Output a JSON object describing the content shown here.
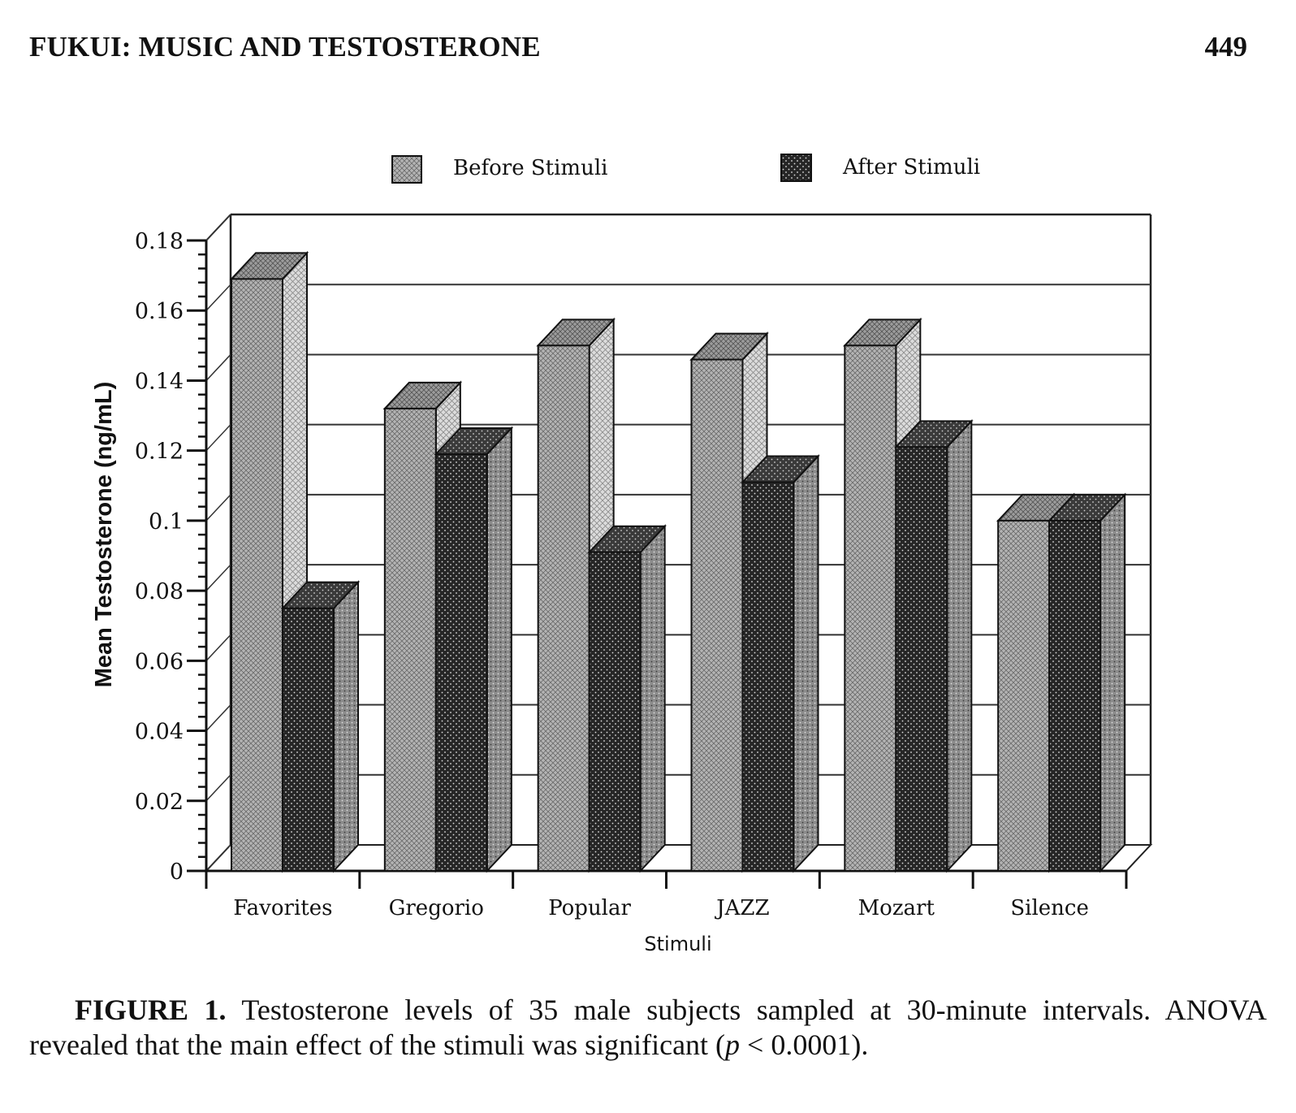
{
  "header": {
    "running_head": "FUKUI: MUSIC AND TESTOSTERONE",
    "page_number": "449"
  },
  "chart_data": {
    "type": "bar",
    "variant": "3d-clustered",
    "categories": [
      "Favorites",
      "Gregorio",
      "Popular",
      "JAZZ",
      "Mozart",
      "Silence"
    ],
    "series": [
      {
        "name": "Before Stimuli",
        "values": [
          0.169,
          0.132,
          0.15,
          0.146,
          0.15,
          0.1
        ]
      },
      {
        "name": "After Stimuli",
        "values": [
          0.075,
          0.119,
          0.091,
          0.111,
          0.121,
          0.1
        ]
      }
    ],
    "xlabel": "Stimuli",
    "ylabel": "Mean Testosterone (ng/mL)",
    "ylim": [
      0,
      0.18
    ],
    "yticks": [
      "0",
      "0.02",
      "0.04",
      "0.06",
      "0.08",
      "0.1",
      "0.12",
      "0.14",
      "0.16",
      "0.18"
    ],
    "grid": true,
    "legend_position": "top",
    "colors": {
      "before": "#a9a9a9",
      "after": "#2a2a2a",
      "frame": "#222222"
    }
  },
  "caption": {
    "label": "FIGURE 1.",
    "text": " Testosterone levels of 35 male subjects sampled at 30-minute intervals. ANOVA revealed that the main effect of the stimuli was significant (",
    "p_symbol": "p",
    "p_rest": " < 0.0001)."
  }
}
